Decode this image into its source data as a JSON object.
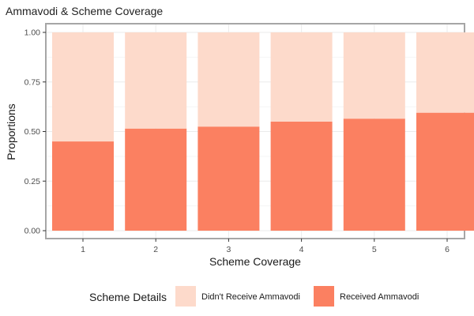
{
  "chart_data": {
    "type": "bar",
    "stacked": true,
    "title": "Ammavodi & Scheme Coverage",
    "xlabel": "Scheme Coverage",
    "ylabel": "Proportions",
    "categories": [
      "1",
      "2",
      "3",
      "4",
      "5",
      "6"
    ],
    "ylim": [
      0,
      1
    ],
    "yticks": [
      "0.00",
      "0.25",
      "0.50",
      "0.75",
      "1.00"
    ],
    "grid": true,
    "legend": {
      "title": "Scheme Details",
      "position": "bottom",
      "entries": [
        "Didn't Receive Ammavodi",
        "Received Ammavodi"
      ]
    },
    "series": [
      {
        "name": "Received Ammavodi",
        "color": "#FB8061",
        "values": [
          0.45,
          0.515,
          0.525,
          0.55,
          0.565,
          0.595
        ]
      },
      {
        "name": "Didn't Receive Ammavodi",
        "color": "#FDDACB",
        "values": [
          0.55,
          0.485,
          0.475,
          0.45,
          0.435,
          0.405
        ]
      }
    ]
  }
}
